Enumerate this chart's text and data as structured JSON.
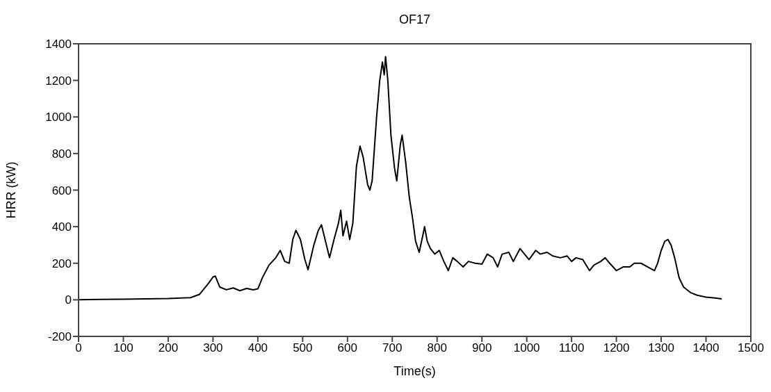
{
  "chart_data": {
    "type": "line",
    "title": "OF17",
    "xlabel": "Time(s)",
    "ylabel": "HRR (kW)",
    "xlim": [
      0,
      1500
    ],
    "xticks": [
      0,
      100,
      200,
      300,
      400,
      500,
      600,
      700,
      800,
      900,
      1000,
      1100,
      1200,
      1300,
      1400,
      1500
    ],
    "ylim": [
      -200,
      1400
    ],
    "yticks": [
      -200,
      0,
      200,
      400,
      600,
      800,
      1000,
      1200,
      1400
    ],
    "grid": false,
    "legend": false,
    "marker": "none",
    "line_style": "solid",
    "series": [
      {
        "color": "#000000",
        "x": [
          0,
          50,
          100,
          150,
          200,
          250,
          270,
          290,
          300,
          305,
          315,
          330,
          345,
          360,
          375,
          390,
          400,
          410,
          425,
          440,
          450,
          460,
          470,
          478,
          485,
          495,
          505,
          512,
          525,
          535,
          542,
          550,
          560,
          570,
          580,
          585,
          590,
          598,
          605,
          612,
          620,
          628,
          635,
          645,
          650,
          655,
          665,
          672,
          678,
          682,
          685,
          690,
          697,
          705,
          710,
          718,
          722,
          730,
          738,
          745,
          752,
          760,
          768,
          772,
          778,
          785,
          795,
          805,
          815,
          825,
          835,
          845,
          858,
          870,
          885,
          900,
          912,
          925,
          935,
          945,
          960,
          970,
          985,
          995,
          1005,
          1020,
          1030,
          1045,
          1058,
          1075,
          1090,
          1100,
          1110,
          1125,
          1140,
          1150,
          1165,
          1175,
          1185,
          1200,
          1215,
          1230,
          1240,
          1255,
          1270,
          1285,
          1292,
          1300,
          1308,
          1315,
          1322,
          1330,
          1340,
          1350,
          1365,
          1380,
          1400,
          1420,
          1435
        ],
        "values": [
          0,
          2,
          3,
          5,
          7,
          12,
          30,
          90,
          125,
          130,
          70,
          55,
          65,
          50,
          62,
          55,
          60,
          120,
          190,
          230,
          270,
          210,
          200,
          330,
          380,
          330,
          220,
          165,
          300,
          380,
          410,
          330,
          230,
          330,
          420,
          490,
          350,
          430,
          330,
          420,
          730,
          840,
          780,
          630,
          600,
          650,
          1000,
          1200,
          1300,
          1230,
          1330,
          1200,
          900,
          720,
          650,
          850,
          900,
          750,
          560,
          450,
          320,
          260,
          350,
          400,
          320,
          280,
          250,
          270,
          210,
          160,
          230,
          210,
          180,
          210,
          200,
          195,
          250,
          230,
          180,
          250,
          260,
          210,
          280,
          250,
          220,
          270,
          250,
          260,
          240,
          230,
          240,
          210,
          230,
          220,
          160,
          190,
          210,
          230,
          200,
          160,
          180,
          180,
          200,
          200,
          180,
          160,
          200,
          270,
          320,
          330,
          300,
          230,
          120,
          70,
          40,
          25,
          15,
          10,
          5
        ]
      }
    ]
  }
}
